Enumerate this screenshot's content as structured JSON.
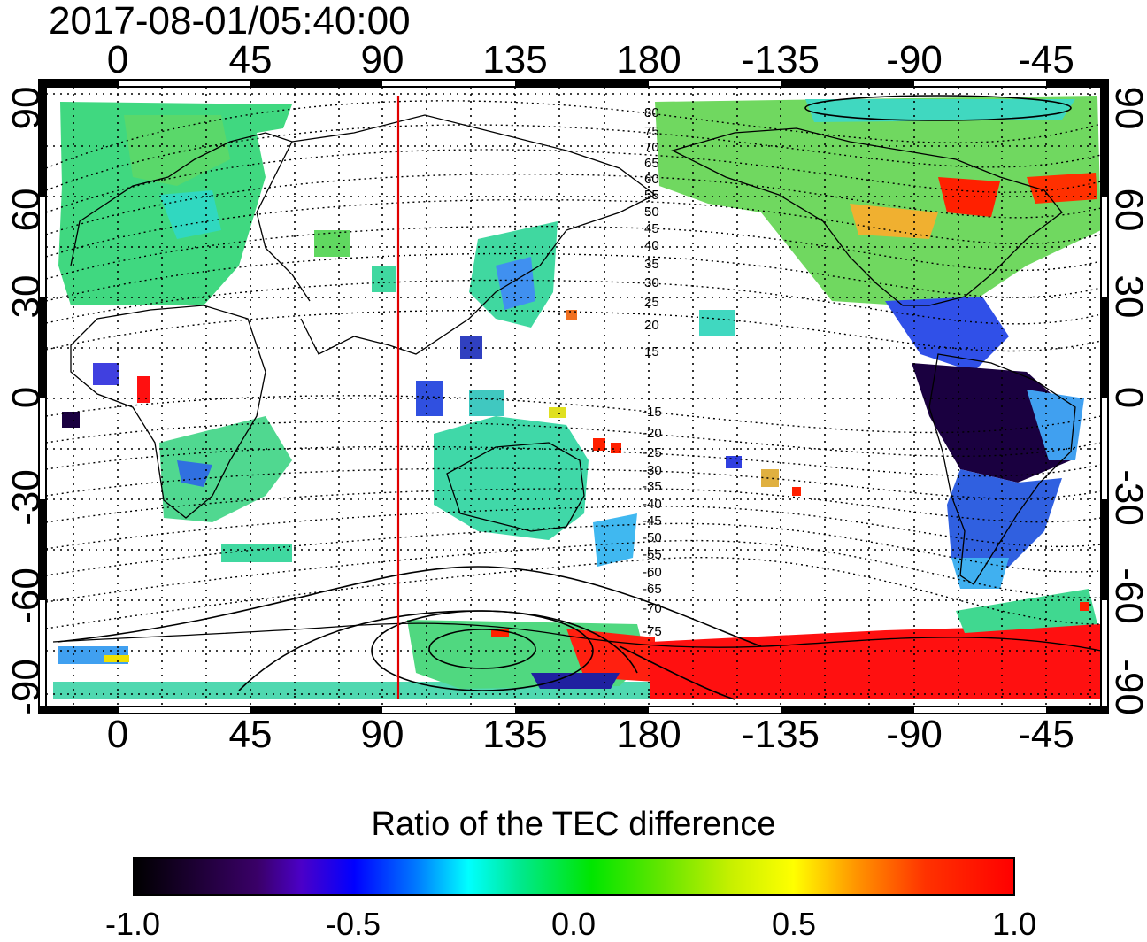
{
  "title": "2017-08-01/05:40:00",
  "axes": {
    "top_lon_ticks": [
      "0",
      "45",
      "90",
      "135",
      "180",
      "-135",
      "-90",
      "-45"
    ],
    "bottom_lon_ticks": [
      "0",
      "45",
      "90",
      "135",
      "180",
      "-135",
      "-90",
      "-45"
    ],
    "left_lat_ticks": [
      "90",
      "60",
      "30",
      "0",
      "-30",
      "-60",
      "-90"
    ],
    "right_lat_ticks": [
      "90",
      "60",
      "30",
      "0",
      "-30",
      "-60",
      "-90"
    ],
    "lon_range": [
      -20,
      340
    ],
    "lat_range": [
      -93,
      92
    ],
    "grid": "dotted, every 15 degrees"
  },
  "marker_line": {
    "longitude": 95,
    "color": "#e00000"
  },
  "magnetic_latitude_labels": [
    "80",
    "75",
    "70",
    "65",
    "60",
    "55",
    "50",
    "45",
    "40",
    "35",
    "30",
    "25",
    "20",
    "15",
    "-15",
    "-20",
    "-25",
    "-30",
    "-35",
    "-40",
    "-45",
    "-50",
    "-55",
    "-60",
    "-65",
    "-70",
    "-75"
  ],
  "colorbar": {
    "title": "Ratio of the TEC difference",
    "tick_labels": [
      "-1.0",
      "-0.5",
      "0.0",
      "0.5",
      "1.0"
    ],
    "range": [
      -1.0,
      1.0
    ],
    "colormap": [
      "#000000",
      "#4b00c8",
      "#0000ff",
      "#00ffff",
      "#00e600",
      "#ffff00",
      "#ff0000"
    ]
  },
  "colors": {
    "equatorial_americas": "#1a0040",
    "south_america": "#3050e0",
    "north_america": "#70d860",
    "canada_enhancement": "#ff2000",
    "europe_asia": "#40d880",
    "australia": "#40d8a8",
    "antarctica_pacific": "#ff1010",
    "grid": "#000000"
  }
}
